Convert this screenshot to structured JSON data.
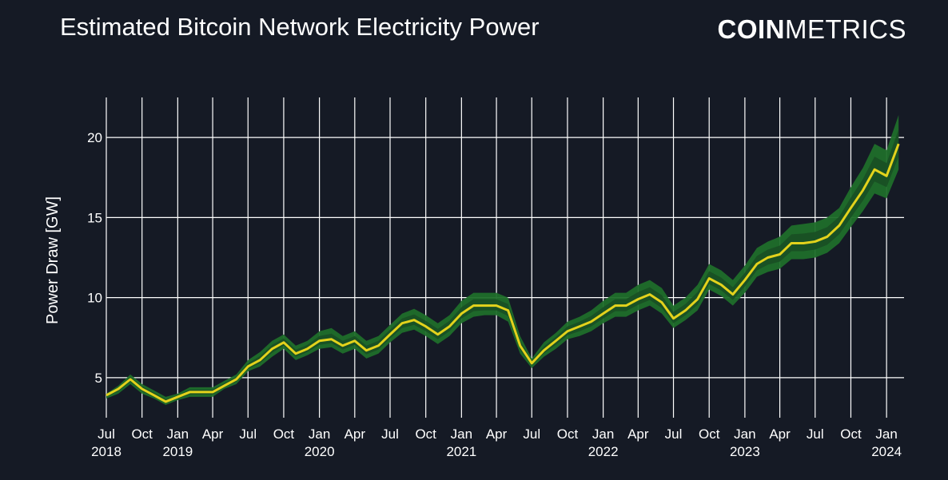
{
  "header": {
    "title": "Estimated Bitcoin Network Electricity Power",
    "logo_bold": "COIN",
    "logo_light": "METRICS"
  },
  "colors": {
    "background": "#151a25",
    "line": "#e3d21c",
    "band_outer": "#1f6e2a",
    "band_inner": "#184f23",
    "grid": "#ffffff"
  },
  "chart_data": {
    "type": "area",
    "title": "Estimated Bitcoin Network Electricity Power",
    "ylabel": "Power Draw [GW]",
    "xlabel": "",
    "ylim": [
      2.5,
      22.5
    ],
    "xlim": [
      "2018-07-01",
      "2024-02-15"
    ],
    "yticks": [
      5,
      10,
      15,
      20
    ],
    "xticks": [
      {
        "date": "2018-07-01",
        "label": "Jul",
        "year": "2018"
      },
      {
        "date": "2018-10-01",
        "label": "Oct",
        "year": ""
      },
      {
        "date": "2019-01-01",
        "label": "Jan",
        "year": "2019"
      },
      {
        "date": "2019-04-01",
        "label": "Apr",
        "year": ""
      },
      {
        "date": "2019-07-01",
        "label": "Jul",
        "year": ""
      },
      {
        "date": "2019-10-01",
        "label": "Oct",
        "year": ""
      },
      {
        "date": "2020-01-01",
        "label": "Jan",
        "year": "2020"
      },
      {
        "date": "2020-04-01",
        "label": "Apr",
        "year": ""
      },
      {
        "date": "2020-07-01",
        "label": "Jul",
        "year": ""
      },
      {
        "date": "2020-10-01",
        "label": "Oct",
        "year": ""
      },
      {
        "date": "2021-01-01",
        "label": "Jan",
        "year": "2021"
      },
      {
        "date": "2021-04-01",
        "label": "Apr",
        "year": ""
      },
      {
        "date": "2021-07-01",
        "label": "Jul",
        "year": ""
      },
      {
        "date": "2021-10-01",
        "label": "Oct",
        "year": ""
      },
      {
        "date": "2022-01-01",
        "label": "Jan",
        "year": "2022"
      },
      {
        "date": "2022-04-01",
        "label": "Apr",
        "year": ""
      },
      {
        "date": "2022-07-01",
        "label": "Jul",
        "year": ""
      },
      {
        "date": "2022-10-01",
        "label": "Oct",
        "year": ""
      },
      {
        "date": "2023-01-01",
        "label": "Jan",
        "year": "2023"
      },
      {
        "date": "2023-04-01",
        "label": "Apr",
        "year": ""
      },
      {
        "date": "2023-07-01",
        "label": "Jul",
        "year": ""
      },
      {
        "date": "2023-10-01",
        "label": "Oct",
        "year": ""
      },
      {
        "date": "2024-01-01",
        "label": "Jan",
        "year": "2024"
      }
    ],
    "grid": true,
    "legend": "none",
    "series": [
      {
        "x": [
          "2018-07-01",
          "2018-08-01",
          "2018-09-01",
          "2018-10-01",
          "2018-11-01",
          "2018-12-01",
          "2019-01-01",
          "2019-02-01",
          "2019-03-01",
          "2019-04-01",
          "2019-05-01",
          "2019-06-01",
          "2019-07-01",
          "2019-08-01",
          "2019-09-01",
          "2019-10-01",
          "2019-11-01",
          "2019-12-01",
          "2020-01-01",
          "2020-02-01",
          "2020-03-01",
          "2020-04-01",
          "2020-05-01",
          "2020-06-01",
          "2020-07-01",
          "2020-08-01",
          "2020-09-01",
          "2020-10-01",
          "2020-11-01",
          "2020-12-01",
          "2021-01-01",
          "2021-02-01",
          "2021-03-01",
          "2021-04-01",
          "2021-05-01",
          "2021-06-01",
          "2021-07-01",
          "2021-08-01",
          "2021-09-01",
          "2021-10-01",
          "2021-11-01",
          "2021-12-01",
          "2022-01-01",
          "2022-02-01",
          "2022-03-01",
          "2022-04-01",
          "2022-05-01",
          "2022-06-01",
          "2022-07-01",
          "2022-08-01",
          "2022-09-01",
          "2022-10-01",
          "2022-11-01",
          "2022-12-01",
          "2023-01-01",
          "2023-02-01",
          "2023-03-01",
          "2023-04-01",
          "2023-05-01",
          "2023-06-01",
          "2023-07-01",
          "2023-08-01",
          "2023-09-01",
          "2023-10-01",
          "2023-11-01",
          "2023-12-01",
          "2024-01-01",
          "2024-02-01"
        ],
        "values": [
          3.9,
          4.3,
          4.9,
          4.3,
          3.9,
          3.5,
          3.8,
          4.1,
          4.1,
          4.1,
          4.5,
          4.9,
          5.7,
          6.1,
          6.8,
          7.2,
          6.5,
          6.8,
          7.3,
          7.4,
          7.0,
          7.3,
          6.7,
          7.0,
          7.7,
          8.4,
          8.6,
          8.2,
          7.7,
          8.2,
          9.0,
          9.5,
          9.5,
          9.5,
          9.2,
          7.0,
          5.9,
          6.7,
          7.3,
          7.9,
          8.2,
          8.5,
          9.0,
          9.5,
          9.5,
          9.9,
          10.2,
          9.7,
          8.7,
          9.2,
          9.9,
          11.2,
          10.8,
          10.2,
          11.1,
          12.1,
          12.5,
          12.7,
          13.4,
          13.4,
          13.5,
          13.8,
          14.5,
          15.6,
          16.7,
          18.0,
          17.6,
          19.6
        ],
        "upper": [
          4.0,
          4.5,
          5.2,
          4.6,
          4.2,
          3.8,
          4.0,
          4.4,
          4.4,
          4.4,
          4.8,
          5.2,
          6.1,
          6.6,
          7.3,
          7.7,
          7.0,
          7.3,
          7.9,
          8.1,
          7.6,
          7.9,
          7.3,
          7.6,
          8.3,
          9.0,
          9.3,
          8.9,
          8.4,
          8.9,
          9.8,
          10.3,
          10.3,
          10.3,
          10.0,
          7.6,
          6.2,
          7.2,
          7.8,
          8.5,
          8.8,
          9.2,
          9.8,
          10.3,
          10.3,
          10.8,
          11.1,
          10.6,
          9.5,
          10.0,
          10.8,
          12.1,
          11.7,
          11.1,
          12.0,
          13.1,
          13.5,
          13.8,
          14.5,
          14.6,
          14.7,
          15.0,
          15.6,
          16.9,
          18.1,
          19.6,
          19.2,
          21.4
        ],
        "lower": [
          3.7,
          4.0,
          4.6,
          4.0,
          3.7,
          3.3,
          3.6,
          3.8,
          3.8,
          3.8,
          4.3,
          4.6,
          5.4,
          5.7,
          6.3,
          6.8,
          6.1,
          6.4,
          6.8,
          6.9,
          6.5,
          6.8,
          6.2,
          6.5,
          7.2,
          7.8,
          8.0,
          7.6,
          7.1,
          7.6,
          8.4,
          8.8,
          8.9,
          8.9,
          8.5,
          6.5,
          5.6,
          6.3,
          6.8,
          7.4,
          7.6,
          7.9,
          8.4,
          8.8,
          8.8,
          9.2,
          9.5,
          9.0,
          8.1,
          8.6,
          9.2,
          10.5,
          10.1,
          9.5,
          10.3,
          11.3,
          11.6,
          11.8,
          12.4,
          12.4,
          12.5,
          12.8,
          13.4,
          14.4,
          15.4,
          16.5,
          16.2,
          18.0
        ]
      }
    ]
  }
}
